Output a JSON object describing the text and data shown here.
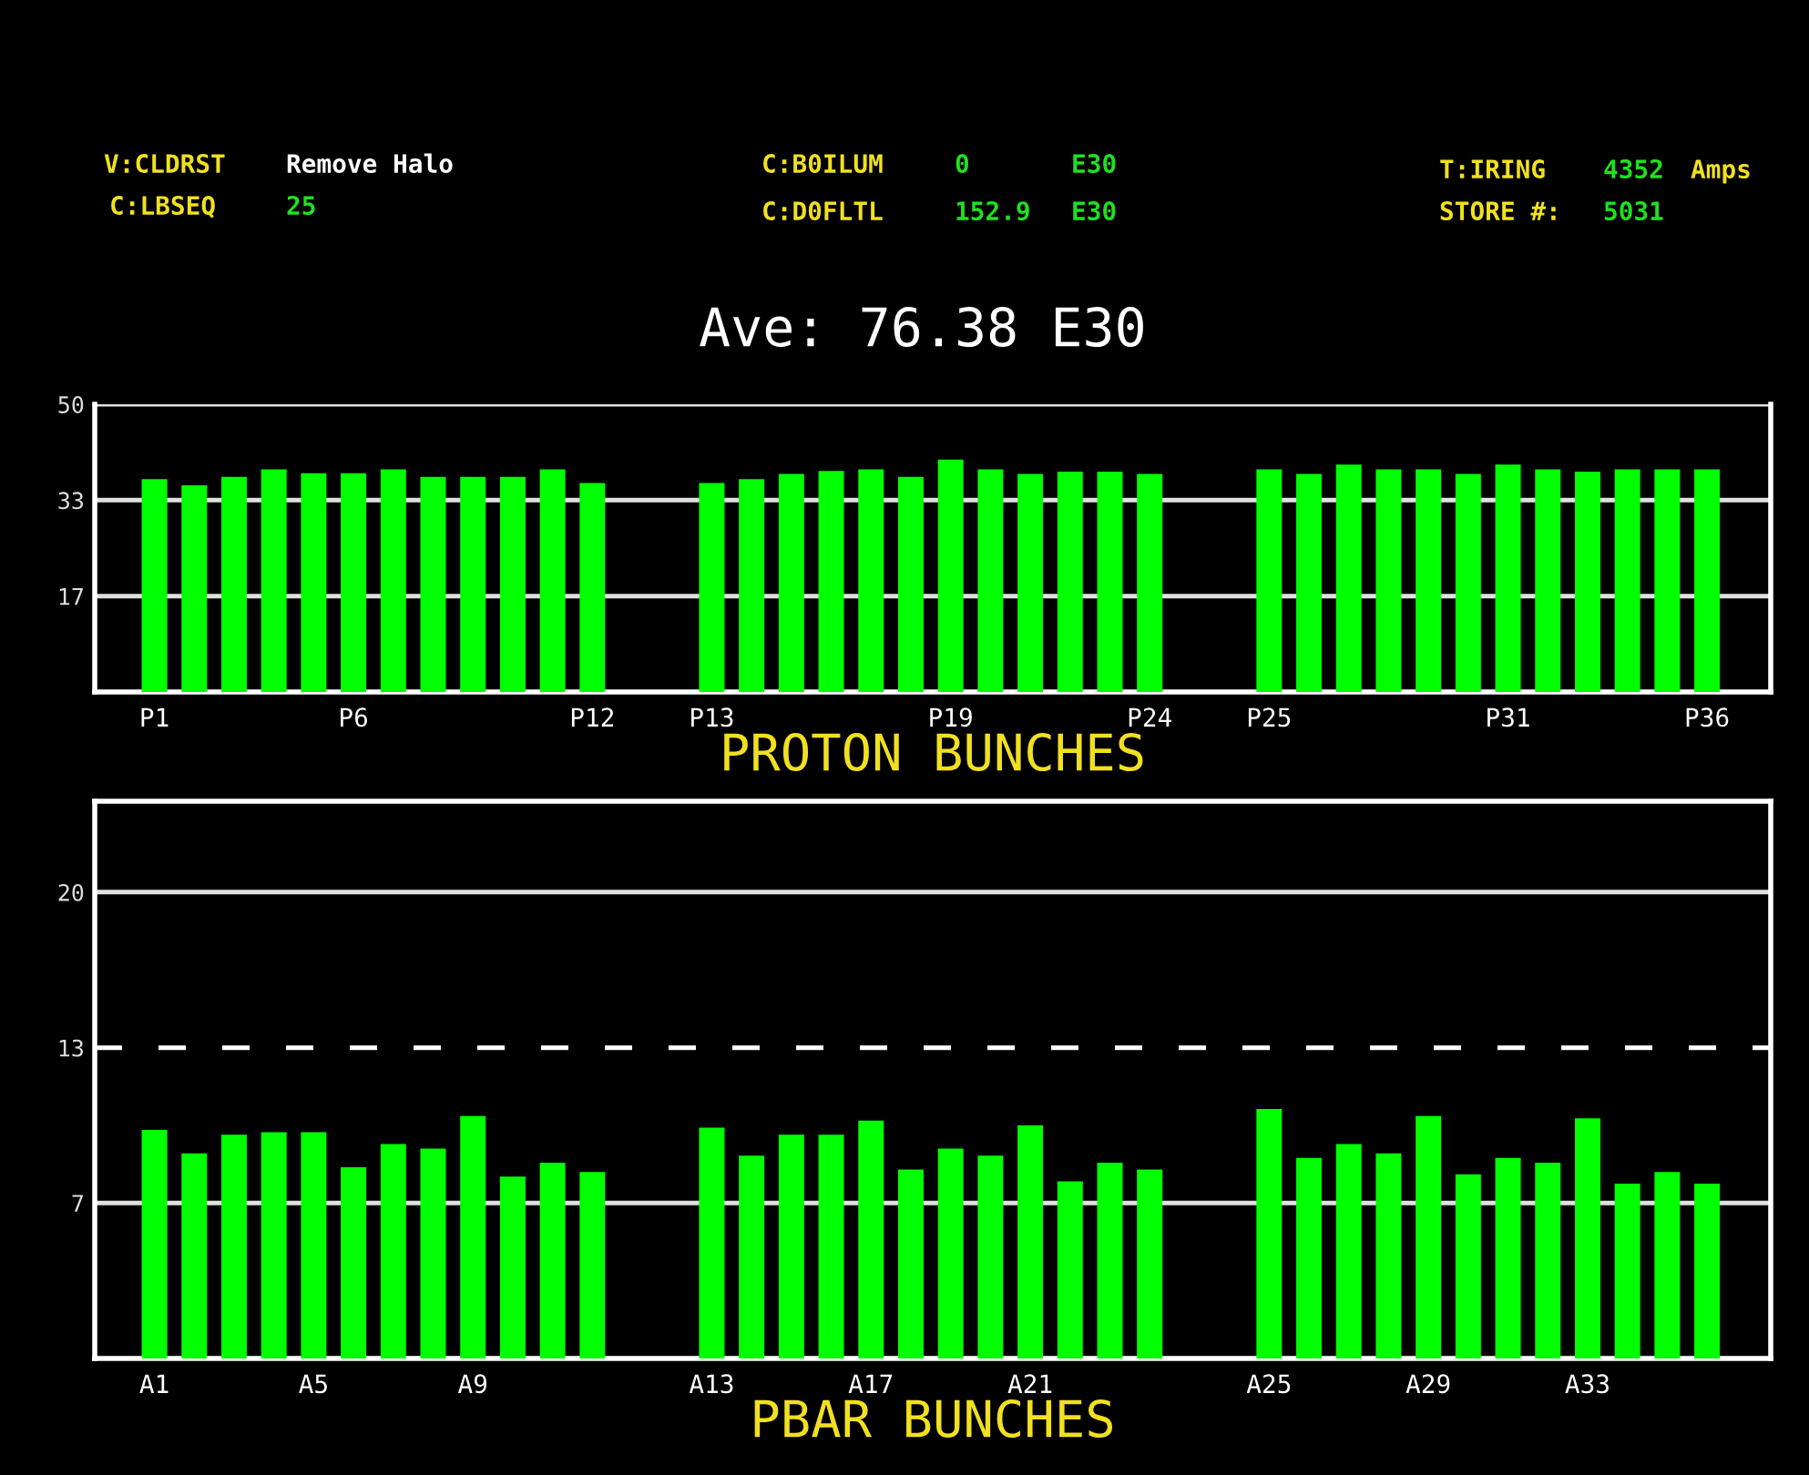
{
  "chart_data": [
    {
      "type": "bar",
      "title": "Ave: 76.38 E30",
      "xlabel": "PROTON BUNCHES",
      "annotations": [
        "V:CLDRST",
        "Remove Halo",
        "C:LBSEQ",
        "25",
        "C:B0ILUM",
        "0",
        "E30",
        "C:D0FLTL",
        "152.9",
        "E30",
        "T:IRING",
        "4352",
        "Amps",
        "STORE #:",
        "5031"
      ],
      "categories": [
        "P1",
        null,
        null,
        null,
        null,
        "P6",
        null,
        null,
        null,
        null,
        null,
        "P12",
        null,
        null,
        "P13",
        null,
        null,
        null,
        null,
        null,
        "P19",
        null,
        null,
        null,
        null,
        "P24",
        null,
        null,
        "P25",
        null,
        null,
        null,
        null,
        null,
        "P31",
        null,
        null,
        null,
        null,
        "P36"
      ],
      "values": [
        37.0,
        35.9,
        37.4,
        38.7,
        38.0,
        38.0,
        38.7,
        37.4,
        37.4,
        37.4,
        38.7,
        36.3,
        null,
        null,
        36.3,
        37.0,
        37.9,
        38.4,
        38.7,
        37.4,
        40.4,
        38.7,
        37.9,
        38.3,
        38.3,
        37.9,
        null,
        null,
        38.7,
        37.9,
        39.5,
        38.7,
        38.7,
        37.9,
        39.5,
        38.7,
        38.3,
        38.7,
        38.7,
        38.7
      ],
      "color": "#00ff00",
      "ylim": [
        0,
        50
      ],
      "yticks": [
        {
          "value": 16.67,
          "label": "17"
        },
        {
          "value": 33.33,
          "label": "33"
        },
        {
          "value": 50,
          "label": "50"
        }
      ],
      "grid": "y"
    },
    {
      "type": "bar",
      "xlabel": "PBAR BUNCHES",
      "categories": [
        "A1",
        null,
        null,
        null,
        "A5",
        null,
        null,
        null,
        "A9",
        null,
        null,
        null,
        null,
        null,
        "A13",
        null,
        null,
        null,
        "A17",
        null,
        null,
        null,
        "A21",
        null,
        null,
        null,
        null,
        null,
        "A25",
        null,
        null,
        null,
        "A29",
        null,
        null,
        null,
        "A33",
        null,
        null,
        null
      ],
      "values": [
        9.8,
        8.8,
        9.6,
        9.7,
        9.7,
        8.2,
        9.2,
        9.0,
        10.4,
        7.8,
        8.4,
        8.0,
        null,
        null,
        9.9,
        8.7,
        9.6,
        9.6,
        10.2,
        8.1,
        9.0,
        8.7,
        10.0,
        7.6,
        8.4,
        8.1,
        null,
        null,
        10.7,
        8.6,
        9.2,
        8.8,
        10.4,
        7.9,
        8.6,
        8.4,
        10.3,
        7.5,
        8.0,
        7.5
      ],
      "color": "#00ff00",
      "ylim": [
        0,
        23.9
      ],
      "yticks": [
        {
          "value": 6.67,
          "label": "7"
        },
        {
          "value": 13.33,
          "label": "13"
        },
        {
          "value": 20,
          "label": "20"
        }
      ],
      "grid": "y",
      "ref_lines": [
        {
          "axis": "y",
          "value": 13.33,
          "line_style": "dashed",
          "color": "#ffffff"
        }
      ]
    }
  ]
}
